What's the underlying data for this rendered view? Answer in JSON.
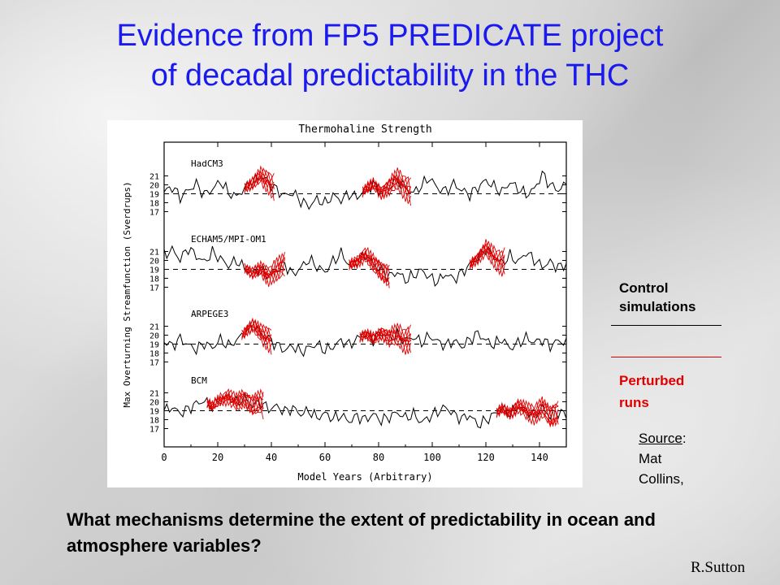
{
  "slide": {
    "title_line1": "Evidence from FP5 PREDICATE project",
    "title_line2": "of decadal predictability in the THC",
    "legend_control": [
      "Control",
      "simulations"
    ],
    "legend_perturbed": [
      "Perturbed",
      "runs"
    ],
    "source_label": "Source",
    "source_rest": [
      "Mat",
      "Collins,"
    ],
    "question": "What mechanisms determine the extent of predictability in ocean and atmosphere variables?",
    "author": "R.Sutton",
    "colors": {
      "title": "#1a1aee",
      "control": "#000000",
      "perturbed": "#e00000"
    }
  },
  "chart_data": {
    "type": "line",
    "title": "Thermohaline Strength",
    "xlabel": "Model Years (Arbitrary)",
    "ylabel": "Max Overturning Streamfunction (Sverdrups)",
    "xlim": [
      0,
      150
    ],
    "x_ticks": [
      "0",
      "20",
      "40",
      "60",
      "80",
      "100",
      "120",
      "140"
    ],
    "y_ticks": [
      "21",
      "20",
      "19",
      "18",
      "17"
    ],
    "grid": false,
    "panels": [
      {
        "name": "HadCM3",
        "mean": 19,
        "control": [
          19.2,
          19.8,
          18.6,
          19.4,
          20.1,
          18.9,
          19.5,
          20.4,
          19.1,
          18.7,
          19.6,
          20.2,
          21.0,
          20.3,
          19.4,
          18.8,
          19.1,
          18.2,
          17.6,
          18.4,
          17.9,
          18.8,
          18.3,
          19.0,
          18.6,
          19.5,
          20.0,
          19.2,
          19.8,
          20.6,
          19.7,
          19.1,
          19.9,
          20.8,
          19.6,
          19.3,
          20.1,
          19.4,
          18.9,
          19.7,
          20.5,
          19.8,
          19.2,
          20.3,
          19.6,
          18.9,
          19.5,
          21.2,
          20.0,
          19.4,
          20.1
        ],
        "perturbed_segments": [
          [
            30,
            41
          ],
          [
            74,
            92
          ]
        ]
      },
      {
        "name": "ECHAM5/MPI-OM1",
        "mean": 19,
        "control": [
          20.6,
          21.2,
          20.1,
          21.4,
          20.5,
          19.8,
          20.9,
          20.2,
          19.4,
          20.0,
          19.1,
          18.6,
          19.0,
          18.3,
          18.9,
          19.6,
          18.4,
          19.2,
          20.1,
          19.3,
          18.7,
          19.9,
          20.8,
          19.5,
          19.9,
          20.7,
          19.6,
          18.9,
          18.2,
          18.7,
          17.8,
          18.3,
          18.9,
          18.1,
          17.6,
          18.5,
          17.9,
          18.6,
          19.5,
          20.3,
          21.3,
          20.4,
          19.7,
          20.5,
          19.8,
          20.9,
          20.1,
          19.3,
          19.8,
          19.2,
          19.6
        ],
        "perturbed_segments": [
          [
            30,
            45
          ],
          [
            69,
            84
          ],
          [
            114,
            127
          ]
        ]
      },
      {
        "name": "ARPEGE3",
        "mean": 19,
        "control": [
          19.3,
          18.8,
          19.6,
          18.9,
          18.4,
          19.1,
          18.6,
          19.5,
          18.8,
          19.4,
          20.3,
          21.1,
          20.2,
          19.6,
          18.9,
          18.3,
          18.8,
          18.1,
          18.6,
          19.0,
          18.3,
          18.7,
          19.4,
          18.9,
          19.6,
          20.1,
          19.5,
          20.3,
          19.7,
          20.0,
          19.4,
          19.8,
          19.2,
          19.9,
          19.3,
          18.8,
          19.4,
          18.7,
          19.5,
          20.2,
          19.4,
          18.9,
          19.6,
          18.5,
          19.1,
          19.7,
          19.2,
          19.5,
          18.8,
          19.4,
          19.1
        ],
        "perturbed_segments": [
          [
            29,
            40
          ],
          [
            73,
            92
          ]
        ]
      },
      {
        "name": "BCM",
        "mean": 19,
        "control": [
          19.0,
          19.4,
          18.7,
          19.2,
          19.8,
          20.1,
          19.5,
          20.2,
          20.6,
          19.9,
          20.4,
          19.6,
          19.9,
          19.2,
          19.5,
          18.9,
          19.3,
          18.6,
          19.0,
          18.2,
          18.7,
          18.1,
          18.5,
          17.8,
          18.4,
          18.0,
          18.6,
          17.9,
          18.3,
          18.8,
          18.2,
          18.6,
          17.7,
          18.3,
          18.9,
          19.4,
          18.6,
          18.1,
          18.5,
          17.4,
          17.9,
          18.6,
          19.2,
          18.7,
          19.5,
          19.0,
          18.6,
          19.3,
          18.4,
          18.9,
          18.5
        ],
        "perturbed_segments": [
          [
            16,
            37
          ],
          [
            124,
            147
          ]
        ]
      }
    ]
  }
}
